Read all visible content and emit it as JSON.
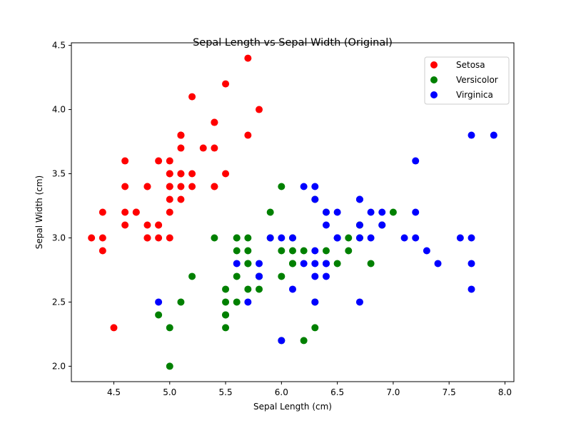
{
  "chart_data": {
    "type": "scatter",
    "title": "Sepal Length vs Sepal Width (Original)",
    "xlabel": "Sepal Length (cm)",
    "ylabel": "Sepal Width (cm)",
    "xlim": [
      4.12,
      8.08
    ],
    "ylim": [
      1.88,
      4.52
    ],
    "xticks": [
      "4.5",
      "5.0",
      "5.5",
      "6.0",
      "6.5",
      "7.0",
      "7.5",
      "8.0"
    ],
    "yticks": [
      "2.0",
      "2.5",
      "3.0",
      "3.5",
      "4.0",
      "4.5"
    ],
    "grid": false,
    "legend_position": "top-right",
    "series": [
      {
        "name": "Setosa",
        "color": "#ff0000",
        "points": [
          [
            5.1,
            3.5
          ],
          [
            4.9,
            3.0
          ],
          [
            4.7,
            3.2
          ],
          [
            4.6,
            3.1
          ],
          [
            5.0,
            3.6
          ],
          [
            5.4,
            3.9
          ],
          [
            4.6,
            3.4
          ],
          [
            5.0,
            3.4
          ],
          [
            4.4,
            2.9
          ],
          [
            4.9,
            3.1
          ],
          [
            5.4,
            3.7
          ],
          [
            4.8,
            3.4
          ],
          [
            4.8,
            3.0
          ],
          [
            4.3,
            3.0
          ],
          [
            5.8,
            4.0
          ],
          [
            5.7,
            4.4
          ],
          [
            5.4,
            3.9
          ],
          [
            5.1,
            3.5
          ],
          [
            5.7,
            3.8
          ],
          [
            5.1,
            3.8
          ],
          [
            5.4,
            3.4
          ],
          [
            5.1,
            3.7
          ],
          [
            4.6,
            3.6
          ],
          [
            5.1,
            3.3
          ],
          [
            4.8,
            3.4
          ],
          [
            5.0,
            3.0
          ],
          [
            5.0,
            3.4
          ],
          [
            5.2,
            3.5
          ],
          [
            5.2,
            3.4
          ],
          [
            4.7,
            3.2
          ],
          [
            4.8,
            3.1
          ],
          [
            5.4,
            3.4
          ],
          [
            5.2,
            4.1
          ],
          [
            5.5,
            4.2
          ],
          [
            4.9,
            3.1
          ],
          [
            5.0,
            3.2
          ],
          [
            5.5,
            3.5
          ],
          [
            4.9,
            3.6
          ],
          [
            4.4,
            3.0
          ],
          [
            5.1,
            3.4
          ],
          [
            5.0,
            3.5
          ],
          [
            4.5,
            2.3
          ],
          [
            4.4,
            3.2
          ],
          [
            5.0,
            3.5
          ],
          [
            5.1,
            3.8
          ],
          [
            4.8,
            3.0
          ],
          [
            5.1,
            3.8
          ],
          [
            4.6,
            3.2
          ],
          [
            5.3,
            3.7
          ],
          [
            5.0,
            3.3
          ]
        ]
      },
      {
        "name": "Versicolor",
        "color": "#008000",
        "points": [
          [
            7.0,
            3.2
          ],
          [
            6.4,
            3.2
          ],
          [
            6.9,
            3.1
          ],
          [
            5.5,
            2.3
          ],
          [
            6.5,
            2.8
          ],
          [
            5.7,
            2.8
          ],
          [
            6.3,
            3.3
          ],
          [
            4.9,
            2.4
          ],
          [
            6.6,
            2.9
          ],
          [
            5.2,
            2.7
          ],
          [
            5.0,
            2.0
          ],
          [
            5.9,
            3.0
          ],
          [
            6.0,
            2.2
          ],
          [
            6.1,
            2.9
          ],
          [
            5.6,
            2.9
          ],
          [
            6.7,
            3.1
          ],
          [
            5.6,
            3.0
          ],
          [
            5.8,
            2.7
          ],
          [
            6.2,
            2.2
          ],
          [
            5.6,
            2.5
          ],
          [
            5.9,
            3.2
          ],
          [
            6.1,
            2.8
          ],
          [
            6.3,
            2.5
          ],
          [
            6.1,
            2.8
          ],
          [
            6.4,
            2.9
          ],
          [
            6.6,
            3.0
          ],
          [
            6.8,
            2.8
          ],
          [
            6.7,
            3.0
          ],
          [
            6.0,
            2.9
          ],
          [
            5.7,
            2.6
          ],
          [
            5.5,
            2.4
          ],
          [
            5.5,
            2.4
          ],
          [
            5.8,
            2.7
          ],
          [
            6.0,
            2.7
          ],
          [
            5.4,
            3.0
          ],
          [
            6.0,
            3.4
          ],
          [
            6.7,
            3.1
          ],
          [
            6.3,
            2.3
          ],
          [
            5.6,
            3.0
          ],
          [
            5.5,
            2.5
          ],
          [
            5.5,
            2.6
          ],
          [
            6.1,
            3.0
          ],
          [
            5.8,
            2.6
          ],
          [
            5.0,
            2.3
          ],
          [
            5.6,
            2.7
          ],
          [
            5.7,
            3.0
          ],
          [
            5.7,
            2.9
          ],
          [
            6.2,
            2.9
          ],
          [
            5.1,
            2.5
          ],
          [
            5.7,
            2.8
          ]
        ]
      },
      {
        "name": "Virginica",
        "color": "#0000ff",
        "points": [
          [
            6.3,
            3.3
          ],
          [
            5.8,
            2.7
          ],
          [
            7.1,
            3.0
          ],
          [
            6.3,
            2.9
          ],
          [
            6.5,
            3.0
          ],
          [
            7.6,
            3.0
          ],
          [
            4.9,
            2.5
          ],
          [
            7.3,
            2.9
          ],
          [
            6.7,
            2.5
          ],
          [
            7.2,
            3.6
          ],
          [
            6.5,
            3.2
          ],
          [
            6.4,
            2.7
          ],
          [
            6.8,
            3.0
          ],
          [
            5.7,
            2.5
          ],
          [
            5.8,
            2.8
          ],
          [
            6.4,
            3.2
          ],
          [
            6.5,
            3.0
          ],
          [
            7.7,
            3.8
          ],
          [
            7.7,
            2.6
          ],
          [
            6.0,
            2.2
          ],
          [
            6.9,
            3.2
          ],
          [
            5.6,
            2.8
          ],
          [
            7.7,
            2.8
          ],
          [
            6.3,
            2.7
          ],
          [
            6.7,
            3.3
          ],
          [
            7.2,
            3.2
          ],
          [
            6.2,
            2.8
          ],
          [
            6.1,
            3.0
          ],
          [
            6.4,
            2.8
          ],
          [
            7.2,
            3.0
          ],
          [
            7.4,
            2.8
          ],
          [
            7.9,
            3.8
          ],
          [
            6.4,
            2.8
          ],
          [
            6.3,
            2.8
          ],
          [
            6.1,
            2.6
          ],
          [
            7.7,
            3.0
          ],
          [
            6.3,
            3.4
          ],
          [
            6.4,
            3.1
          ],
          [
            6.0,
            3.0
          ],
          [
            6.9,
            3.1
          ],
          [
            6.7,
            3.1
          ],
          [
            6.9,
            3.1
          ],
          [
            5.8,
            2.7
          ],
          [
            6.8,
            3.2
          ],
          [
            6.7,
            3.3
          ],
          [
            6.7,
            3.0
          ],
          [
            6.3,
            2.5
          ],
          [
            6.5,
            3.0
          ],
          [
            6.2,
            3.4
          ],
          [
            5.9,
            3.0
          ]
        ]
      }
    ]
  }
}
